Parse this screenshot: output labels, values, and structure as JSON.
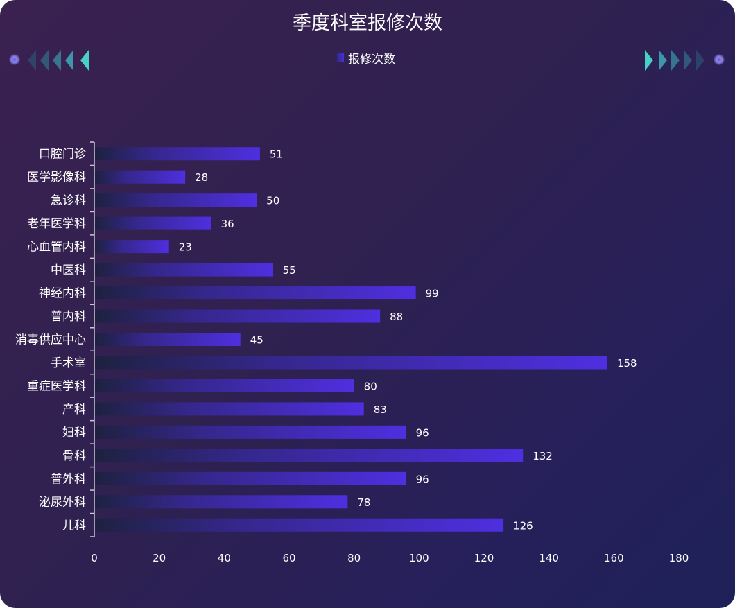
{
  "title": "季度科室报修次数",
  "legend": {
    "label": "报修次数"
  },
  "colors": {
    "bar_end": "#4f2fe0",
    "bar_start": "#1e2140",
    "axis": "#c9c9d6"
  },
  "chart_data": {
    "type": "bar",
    "orientation": "horizontal",
    "title": "季度科室报修次数",
    "categories": [
      "口腔门诊",
      "医学影像科",
      "急诊科",
      "老年医学科",
      "心血管内科",
      "中医科",
      "神经内科",
      "普内科",
      "消毒供应中心",
      "手术室",
      "重症医学科",
      "产科",
      "妇科",
      "骨科",
      "普外科",
      "泌尿外科",
      "儿科"
    ],
    "series": [
      {
        "name": "报修次数",
        "values": [
          51,
          28,
          50,
          36,
          23,
          55,
          99,
          88,
          45,
          158,
          80,
          83,
          96,
          132,
          96,
          78,
          126
        ]
      }
    ],
    "xlim": [
      0,
      180
    ],
    "xticks": [
      "0",
      "20",
      "40",
      "60",
      "80",
      "100",
      "120",
      "140",
      "160",
      "180"
    ],
    "grid": false,
    "legend_position": "top-center",
    "data_labels": true
  }
}
